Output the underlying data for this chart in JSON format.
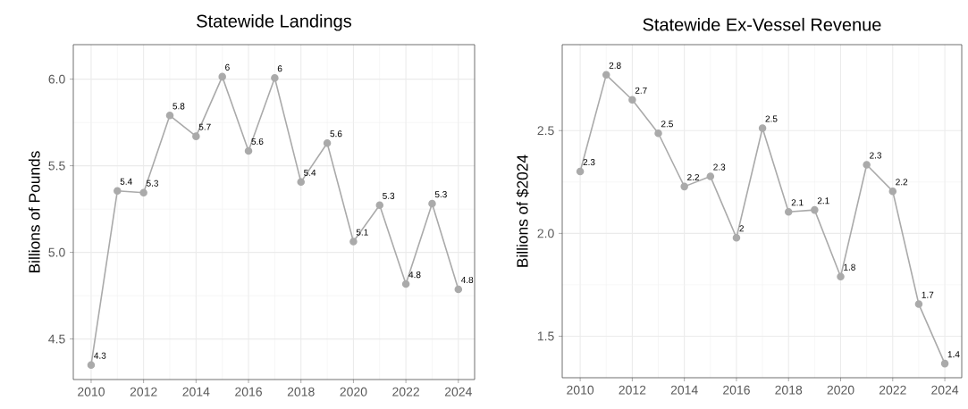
{
  "chart_data": [
    {
      "type": "line",
      "title": "Statewide Landings",
      "ylabel": "Billions of Pounds",
      "x": [
        2010,
        2011,
        2012,
        2013,
        2014,
        2015,
        2016,
        2017,
        2018,
        2019,
        2020,
        2021,
        2022,
        2023,
        2024
      ],
      "series": [
        {
          "color": "#aaaaaa",
          "values": [
            4.35,
            5.355,
            5.345,
            5.79,
            5.67,
            6.014,
            5.586,
            6.007,
            5.406,
            5.631,
            5.062,
            5.272,
            4.817,
            5.281,
            4.787
          ],
          "value_labels": [
            "4.3",
            "5.4",
            "5.3",
            "5.8",
            "5.7",
            "6",
            "5.6",
            "6",
            "5.4",
            "5.6",
            "5.1",
            "5.3",
            "4.8",
            "5.3",
            "4.8"
          ]
        }
      ],
      "xlim": [
        2009.32,
        2024.62
      ],
      "ylim": [
        4.266,
        6.199
      ],
      "xticks": [
        2010,
        2012,
        2014,
        2016,
        2018,
        2020,
        2022,
        2024
      ],
      "yticks": [
        {
          "value": 4.5,
          "label": "4.5"
        },
        {
          "value": 5,
          "label": "5.0"
        },
        {
          "value": 5.5,
          "label": "5.5"
        },
        {
          "value": 6,
          "label": "6.0"
        }
      ],
      "grid": true,
      "marker": "circle",
      "line_style": "solid"
    },
    {
      "type": "line",
      "title": "Statewide Ex-Vessel Revenue",
      "ylabel": "Billions of $2024",
      "x": [
        2010,
        2011,
        2012,
        2013,
        2014,
        2015,
        2016,
        2017,
        2018,
        2019,
        2020,
        2021,
        2022,
        2023,
        2024
      ],
      "series": [
        {
          "color": "#aaaaaa",
          "values": [
            2.301,
            2.771,
            2.65,
            2.487,
            2.228,
            2.277,
            1.979,
            2.512,
            2.105,
            2.114,
            1.79,
            2.334,
            2.205,
            1.656,
            1.367
          ],
          "value_labels": [
            "2.3",
            "2.8",
            "2.7",
            "2.5",
            "2.2",
            "2.3",
            "2",
            "2.5",
            "2.1",
            "2.1",
            "1.8",
            "2.3",
            "2.2",
            "1.7",
            "1.4"
          ]
        }
      ],
      "xlim": [
        2009.31,
        2024.65
      ],
      "ylim": [
        1.298,
        2.918
      ],
      "xticks": [
        2010,
        2012,
        2014,
        2016,
        2018,
        2020,
        2022,
        2024
      ],
      "yticks": [
        {
          "value": 1.5,
          "label": "1.5"
        },
        {
          "value": 2,
          "label": "2.0"
        },
        {
          "value": 2.5,
          "label": "2.5"
        }
      ],
      "grid": true,
      "marker": "circle",
      "line_style": "solid"
    }
  ]
}
